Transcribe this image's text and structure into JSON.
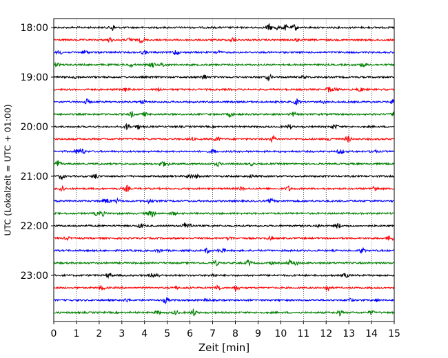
{
  "chart_data": {
    "type": "line",
    "subtype": "helicorder-seismogram",
    "title": "",
    "xlabel": "Zeit  [min]",
    "ylabel": "UTC (Lokalzeit = UTC + 01:00)",
    "xlim": [
      0,
      15
    ],
    "x_ticks": [
      "0",
      "1",
      "2",
      "3",
      "4",
      "5",
      "6",
      "7",
      "8",
      "9",
      "10",
      "11",
      "12",
      "13",
      "14",
      "15"
    ],
    "y_ticks": [
      "18:00",
      "19:00",
      "20:00",
      "21:00",
      "22:00",
      "23:00"
    ],
    "trace_start_times": [
      "18:00",
      "18:15",
      "18:30",
      "18:45",
      "19:00",
      "19:15",
      "19:30",
      "19:45",
      "20:00",
      "20:15",
      "20:30",
      "20:45",
      "21:00",
      "21:15",
      "21:30",
      "21:45",
      "22:00",
      "22:15",
      "22:30",
      "22:45",
      "23:00",
      "23:15",
      "23:30",
      "23:45"
    ],
    "trace_color_cycle": [
      "#000000",
      "#ff0000",
      "#0000ff",
      "#008000"
    ],
    "grid": "vertical dotted lines at every minute",
    "legend": "none"
  }
}
